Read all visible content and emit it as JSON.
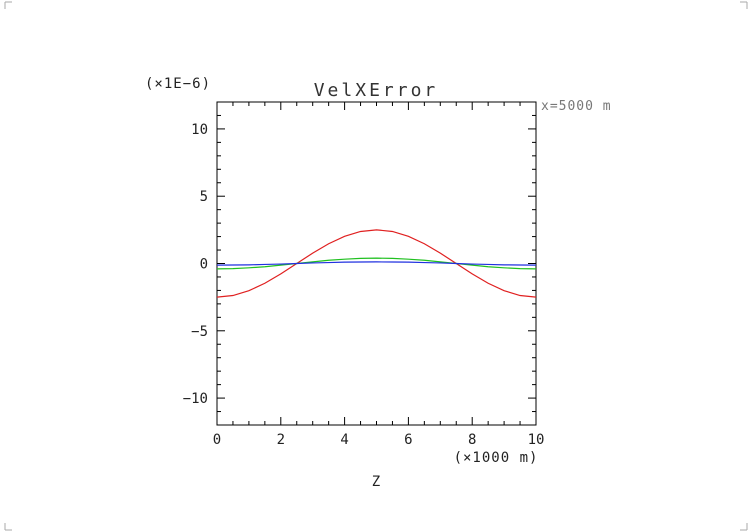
{
  "chart_data": {
    "type": "line",
    "title": "VelXError",
    "y_multiplier_label": "(×1E−6)",
    "annotation": "x=5000 m",
    "xlabel": "Z",
    "x_unit_label": "(×1000 m)",
    "xlim": [
      0,
      10
    ],
    "ylim": [
      -12,
      12
    ],
    "x_ticks": [
      0,
      2,
      4,
      6,
      8,
      10
    ],
    "x_tick_labels": [
      "0",
      "2",
      "4",
      "6",
      "8",
      "10"
    ],
    "y_ticks": [
      -10,
      -5,
      0,
      5,
      10
    ],
    "y_tick_labels": [
      "−10",
      "−5",
      "0",
      "5",
      "10"
    ],
    "x": [
      0,
      0.5,
      1,
      1.5,
      2,
      2.5,
      3,
      3.5,
      4,
      4.5,
      5,
      5.5,
      6,
      6.5,
      7,
      7.5,
      8,
      8.5,
      9,
      9.5,
      10
    ],
    "series": [
      {
        "color": "#e02020",
        "values": [
          -2.5,
          -2.38,
          -2.02,
          -1.47,
          -0.77,
          0.0,
          0.77,
          1.47,
          2.02,
          2.38,
          2.5,
          2.38,
          2.02,
          1.47,
          0.77,
          0.0,
          -0.77,
          -1.47,
          -2.02,
          -2.38,
          -2.5
        ]
      },
      {
        "color": "#20c020",
        "values": [
          -0.4,
          -0.38,
          -0.32,
          -0.24,
          -0.12,
          0.0,
          0.12,
          0.24,
          0.32,
          0.38,
          0.4,
          0.38,
          0.32,
          0.24,
          0.12,
          0.0,
          -0.12,
          -0.24,
          -0.32,
          -0.38,
          -0.4
        ]
      },
      {
        "color": "#2030e0",
        "values": [
          -0.12,
          -0.11,
          -0.1,
          -0.07,
          -0.04,
          0.0,
          0.04,
          0.07,
          0.1,
          0.11,
          0.12,
          0.11,
          0.1,
          0.07,
          0.04,
          0.0,
          -0.04,
          -0.07,
          -0.1,
          -0.11,
          -0.12
        ]
      }
    ],
    "grid": false,
    "legend": "none"
  }
}
